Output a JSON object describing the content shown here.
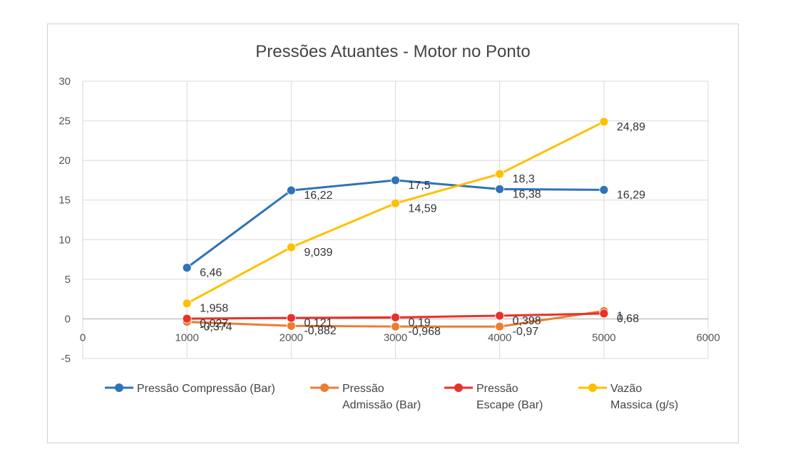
{
  "chart_data": {
    "type": "line",
    "title": "Pressões Atuantes - Motor no Ponto",
    "xlabel": "",
    "ylabel": "",
    "xlim": [
      0,
      6000
    ],
    "ylim": [
      -5,
      30
    ],
    "x_ticks": [
      "0",
      "1000",
      "2000",
      "3000",
      "4000",
      "5000",
      "6000"
    ],
    "y_ticks": [
      "-5",
      "0",
      "5",
      "10",
      "15",
      "20",
      "25",
      "30"
    ],
    "grid": true,
    "legend_position": "bottom",
    "series": [
      {
        "name": "Pressão Compressão (Bar)",
        "legend_lines": [
          "Pressão Compressão (Bar)"
        ],
        "color": "#2e74b5",
        "x": [
          1000,
          2000,
          3000,
          4000,
          5000
        ],
        "values": [
          6.46,
          16.22,
          17.5,
          16.38,
          16.29
        ],
        "labels": [
          "6,46",
          "16,22",
          "17,5",
          "16,38",
          "16,29"
        ]
      },
      {
        "name": "Pressão Admissão (Bar)",
        "legend_lines": [
          "Pressão",
          "Admissão (Bar)"
        ],
        "color": "#ed7d31",
        "x": [
          1000,
          2000,
          3000,
          4000,
          5000
        ],
        "values": [
          -0.374,
          -0.882,
          -0.968,
          -0.97,
          1
        ],
        "labels": [
          "-0,374",
          "-0,882",
          "-0,968",
          "-0,97",
          "1"
        ]
      },
      {
        "name": "Pressão Escape (Bar)",
        "legend_lines": [
          "Pressão",
          "Escape (Bar)"
        ],
        "color": "#e8312a",
        "x": [
          1000,
          2000,
          3000,
          4000,
          5000
        ],
        "values": [
          0.027,
          0.121,
          0.19,
          0.398,
          0.68
        ],
        "labels": [
          "0,027",
          "0,121",
          "0,19",
          "0,398",
          "0,68"
        ]
      },
      {
        "name": "Vazão Massica (g/s)",
        "legend_lines": [
          "Vazão",
          "Massica (g/s)"
        ],
        "color": "#ffc000",
        "x": [
          1000,
          2000,
          3000,
          4000,
          5000
        ],
        "values": [
          1.958,
          9.039,
          14.59,
          18.3,
          24.89
        ],
        "labels": [
          "1,958",
          "9,039",
          "14,59",
          "18,3",
          "24,89"
        ]
      }
    ]
  }
}
